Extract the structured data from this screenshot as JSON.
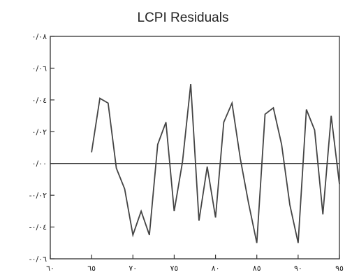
{
  "chart_data": {
    "type": "line",
    "title": "LCPI Residuals",
    "xlabel": "",
    "ylabel": "",
    "xlim": [
      1960,
      1995
    ],
    "ylim": [
      -0.06,
      0.08
    ],
    "x_ticks": [
      {
        "value": 1960,
        "label": "٦٠"
      },
      {
        "value": 1965,
        "label": "٦٥"
      },
      {
        "value": 1970,
        "label": "٧٠"
      },
      {
        "value": 1975,
        "label": "٧٥"
      },
      {
        "value": 1980,
        "label": "٨٠"
      },
      {
        "value": 1985,
        "label": "٨٥"
      },
      {
        "value": 1990,
        "label": "٩٠"
      },
      {
        "value": 1995,
        "label": "٩٥"
      }
    ],
    "y_ticks": [
      {
        "value": 0.08,
        "label": "٠/٠٨"
      },
      {
        "value": 0.06,
        "label": "٠/٠٦"
      },
      {
        "value": 0.04,
        "label": "٠/٠٤"
      },
      {
        "value": 0.02,
        "label": "٠/٠٢"
      },
      {
        "value": 0.0,
        "label": "٠/٠٠"
      },
      {
        "value": -0.02,
        "label": "-٠/٠٢"
      },
      {
        "value": -0.04,
        "label": "-٠/٠٤"
      },
      {
        "value": -0.06,
        "label": "-٠/٠٦"
      }
    ],
    "zero_line": 0,
    "grid": false,
    "series": [
      {
        "x": [
          1965,
          1966,
          1967,
          1968,
          1969,
          1970,
          1971,
          1972,
          1973,
          1974,
          1975,
          1976,
          1977,
          1978,
          1979,
          1980,
          1981,
          1982,
          1983,
          1984,
          1985,
          1986,
          1987,
          1988,
          1989,
          1990,
          1991,
          1992,
          1993,
          1994,
          1995
        ],
        "values": [
          0.007,
          0.041,
          0.038,
          -0.003,
          -0.016,
          -0.045,
          -0.03,
          -0.045,
          0.012,
          0.026,
          -0.03,
          0.001,
          0.05,
          -0.036,
          -0.002,
          -0.034,
          0.026,
          0.038,
          0.003,
          -0.025,
          -0.05,
          0.031,
          0.035,
          0.012,
          -0.026,
          -0.05,
          0.034,
          0.021,
          -0.032,
          0.03,
          -0.013
        ]
      }
    ]
  }
}
